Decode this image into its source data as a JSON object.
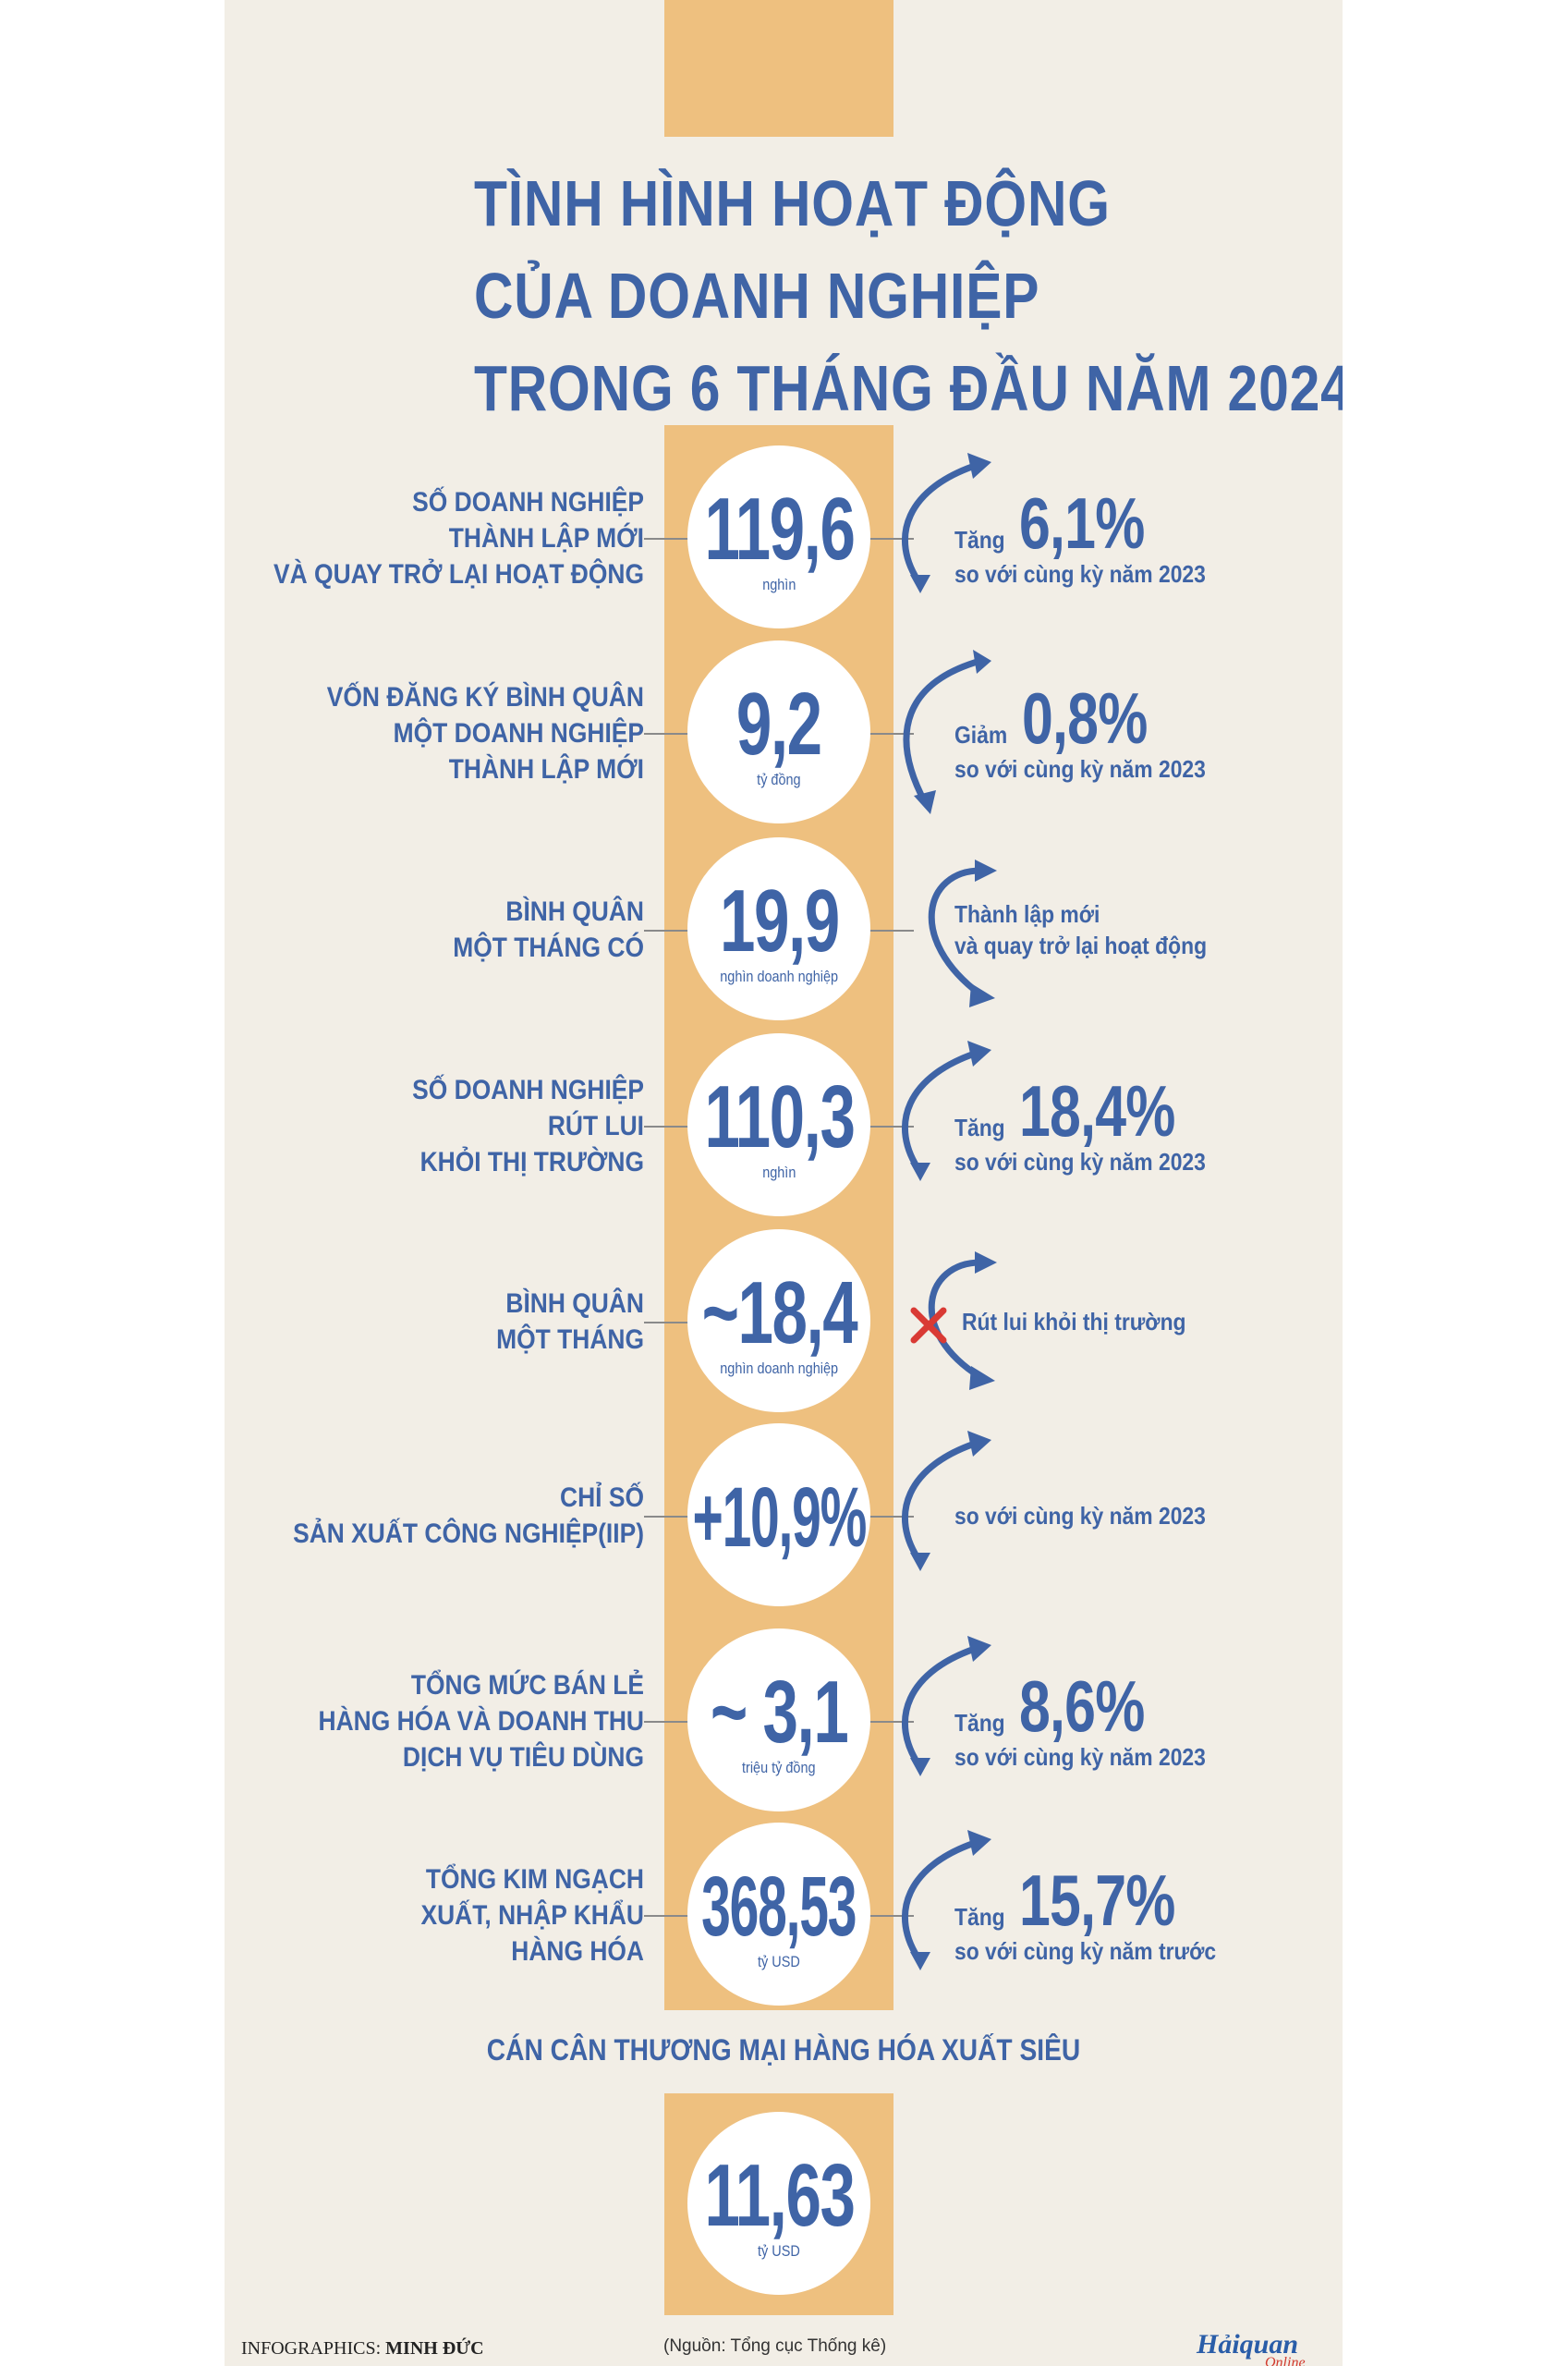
{
  "title": {
    "line1": "TÌNH HÌNH HOẠT ĐỘNG",
    "line2": "CỦA DOANH NGHIỆP",
    "line3": "TRONG 6 THÁNG ĐẦU NĂM 2024"
  },
  "rows": [
    {
      "label": [
        "SỐ DOANH NGHIỆP",
        "THÀNH LẬP MỚI",
        "VÀ QUAY TRỞ LẠI HOẠT ĐỘNG"
      ],
      "value": "119,6",
      "unit": "nghìn",
      "verb": "Tăng",
      "pct": "6,1%",
      "compare": "so với cùng kỳ năm 2023",
      "arrow": "up"
    },
    {
      "label": [
        "VỐN ĐĂNG KÝ BÌNH QUÂN",
        "MỘT DOANH NGHIỆP",
        "THÀNH LẬP MỚI"
      ],
      "value": "9,2",
      "unit": "tỷ đồng",
      "verb": "Giảm",
      "pct": "0,8%",
      "compare": "so với cùng kỳ năm 2023",
      "arrow": "down"
    },
    {
      "label": [
        "BÌNH QUÂN",
        "MỘT THÁNG CÓ"
      ],
      "value": "19,9",
      "unit": "nghìn doanh nghiệp",
      "note": [
        "Thành lập mới",
        "và quay trở lại hoạt động"
      ],
      "arrow": "both"
    },
    {
      "label": [
        "SỐ DOANH NGHIỆP",
        "RÚT LUI",
        "KHỎI THỊ TRƯỜNG"
      ],
      "value": "110,3",
      "unit": "nghìn",
      "verb": "Tăng",
      "pct": "18,4%",
      "compare": "so với cùng kỳ năm 2023",
      "arrow": "up"
    },
    {
      "label": [
        "BÌNH QUÂN",
        "MỘT THÁNG"
      ],
      "value": "~18,4",
      "unit": "nghìn doanh nghiệp",
      "note": [
        "Rút lui khỏi thị trường"
      ],
      "arrow": "both-x"
    },
    {
      "label": [
        "CHỈ SỐ",
        "SẢN XUẤT CÔNG NGHIỆP(IIP)"
      ],
      "value": "+10,9%",
      "unit": "",
      "note": [
        "so với cùng kỳ năm 2023"
      ],
      "arrow": "up"
    },
    {
      "label": [
        "TỔNG MỨC BÁN LẺ",
        "HÀNG HÓA VÀ DOANH THU",
        "DỊCH VỤ TIÊU DÙNG"
      ],
      "value": "~ 3,1",
      "unit": "triệu tỷ đồng",
      "verb": "Tăng",
      "pct": "8,6%",
      "compare": "so với cùng kỳ năm 2023",
      "arrow": "up"
    },
    {
      "label": [
        "TỔNG KIM NGẠCH",
        "XUẤT, NHẬP KHẨU",
        "HÀNG HÓA"
      ],
      "value": "368,53",
      "unit": "tỷ USD",
      "verb": "Tăng",
      "pct": "15,7%",
      "compare": "so với cùng kỳ năm trước",
      "arrow": "up"
    }
  ],
  "balance": {
    "title": "CÁN CÂN THƯƠNG MẠI HÀNG HÓA XUẤT SIÊU",
    "value": "11,63",
    "unit": "tỷ USD"
  },
  "credit": {
    "prefix": "INFOGRAPHICS:",
    "author": "MINH ĐỨC"
  },
  "source": "(Nguồn: Tổng cục Thống kê)",
  "logo": {
    "main": "Hảiquan",
    "sub": "Online"
  },
  "colors": {
    "primary": "#3f64a6",
    "column": "#eec07f",
    "background": "#f2eee6",
    "cross": "#d93a34"
  }
}
